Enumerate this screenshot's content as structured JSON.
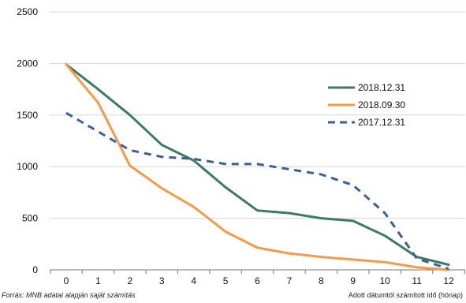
{
  "chart_data": {
    "type": "line",
    "x": [
      0,
      1,
      2,
      3,
      4,
      5,
      6,
      7,
      8,
      9,
      10,
      11,
      12
    ],
    "xlabel": "Adott dátumtól számított idő (hónap)",
    "ylabel": "",
    "ylim": [
      0,
      2500
    ],
    "yticks": [
      0,
      500,
      1000,
      1500,
      2000,
      2500
    ],
    "grid": "horizontal",
    "legend": "right",
    "source": "Forrás: MNB adatai alapján saját számítás",
    "series": [
      {
        "name": "2018.12.31",
        "color": "#3d7a62",
        "dash": "solid",
        "values": [
          1990,
          1750,
          1500,
          1210,
          1060,
          800,
          575,
          550,
          500,
          475,
          330,
          125,
          50
        ]
      },
      {
        "name": "2018.09.30",
        "color": "#f59a4a",
        "dash": "solid",
        "values": [
          1990,
          1620,
          1010,
          790,
          610,
          370,
          215,
          160,
          125,
          100,
          75,
          25,
          0
        ]
      },
      {
        "name": "2017.12.31",
        "color": "#3b5f99",
        "dash": "dashed",
        "values": [
          1520,
          1340,
          1160,
          1095,
          1075,
          1025,
          1025,
          975,
          925,
          820,
          550,
          110,
          10
        ]
      }
    ]
  }
}
